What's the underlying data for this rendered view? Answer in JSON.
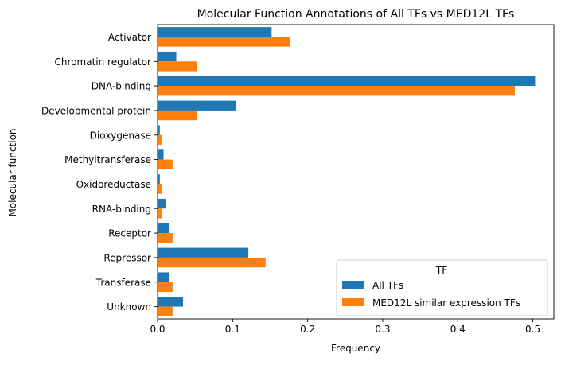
{
  "chart_data": {
    "type": "bar",
    "orientation": "horizontal",
    "title": "Molecular Function Annotations of All TFs vs MED12L TFs",
    "xlabel": "Frequency",
    "ylabel": "Molecular function",
    "xlim": [
      0,
      0.528
    ],
    "xticks": [
      "0.0",
      "0.1",
      "0.2",
      "0.3",
      "0.4",
      "0.5"
    ],
    "xtick_values": [
      0,
      0.1,
      0.2,
      0.3,
      0.4,
      0.5
    ],
    "grid": false,
    "legend": {
      "title": "TF",
      "placement": "lower-right"
    },
    "categories": [
      "Activator",
      "Chromatin regulator",
      "DNA-binding",
      "Developmental protein",
      "Dioxygenase",
      "Methyltransferase",
      "Oxidoreductase",
      "RNA-binding",
      "Receptor",
      "Repressor",
      "Transferase",
      "Unknown"
    ],
    "series": [
      {
        "name": "All TFs",
        "color": "#1f77b4",
        "values": [
          0.152,
          0.025,
          0.503,
          0.104,
          0.003,
          0.008,
          0.003,
          0.011,
          0.016,
          0.121,
          0.016,
          0.034
        ]
      },
      {
        "name": "MED12L similar expression TFs",
        "color": "#ff7f0e",
        "values": [
          0.176,
          0.052,
          0.476,
          0.052,
          0.006,
          0.02,
          0.006,
          0.006,
          0.02,
          0.144,
          0.02,
          0.02
        ]
      }
    ]
  }
}
